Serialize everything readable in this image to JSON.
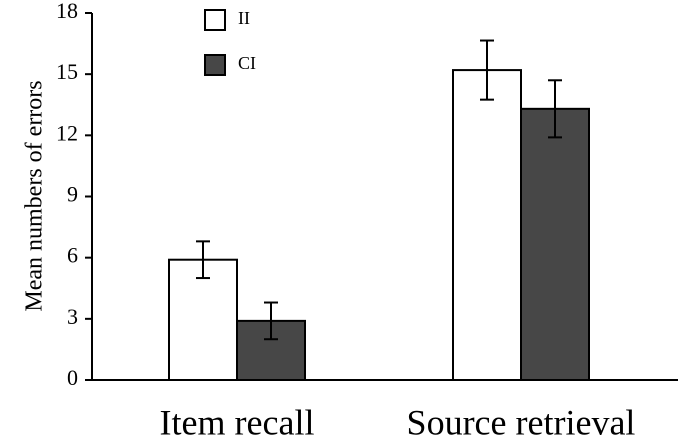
{
  "chart_data": {
    "type": "bar",
    "y_label": "Mean numbers of errors",
    "categories": [
      "Item recall",
      "Source retrieval"
    ],
    "series": [
      {
        "name": "II",
        "color": "#ffffff",
        "values": [
          5.9,
          15.2
        ],
        "errors": [
          0.9,
          1.45
        ]
      },
      {
        "name": "CI",
        "color": "#474747",
        "values": [
          2.9,
          13.3
        ],
        "errors": [
          0.9,
          1.4
        ]
      }
    ],
    "ylim": [
      0,
      18
    ],
    "yticks": [
      0,
      3,
      6,
      9,
      12,
      15,
      18
    ],
    "grid": false
  }
}
